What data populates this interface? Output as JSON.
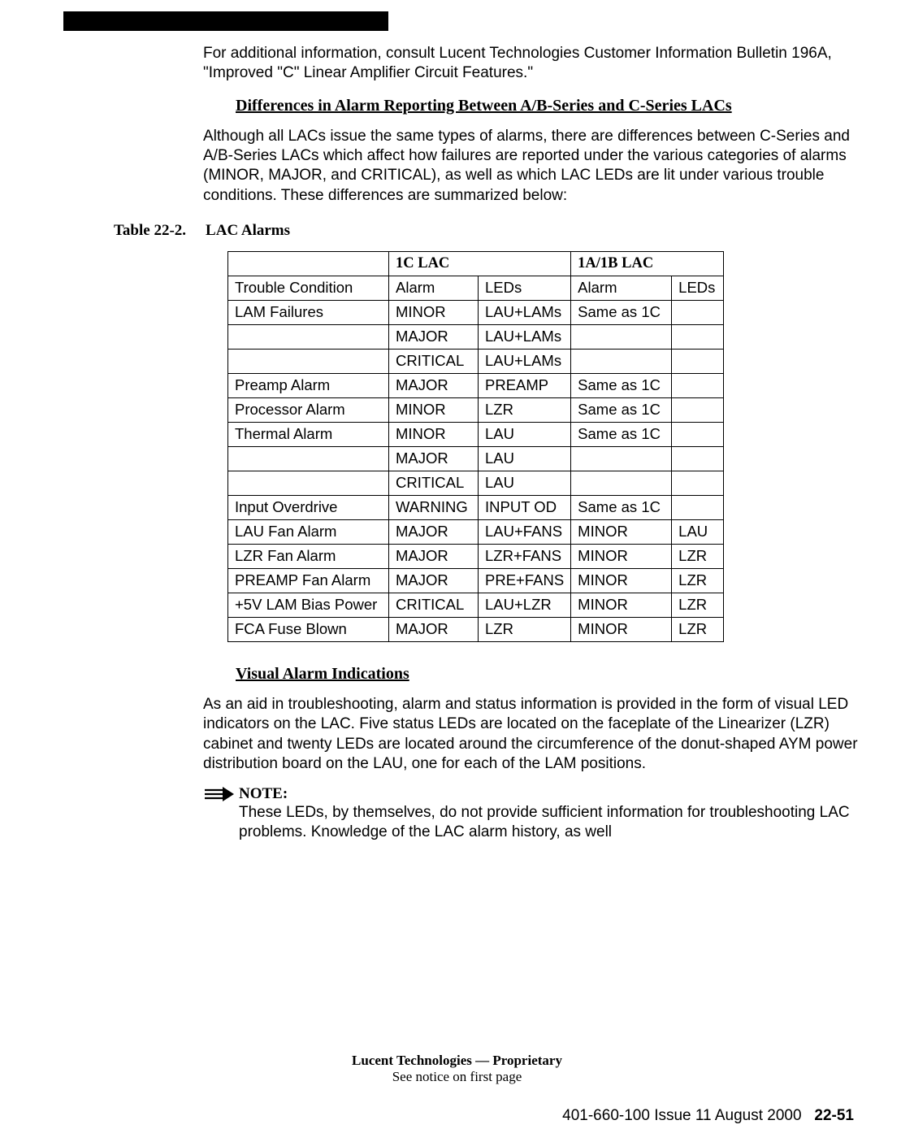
{
  "intro_para": "For additional information, consult  Lucent Technologies Customer Information Bulletin 196A, \"Improved \"C\" Linear Amplifier Circuit Features.\"",
  "heading_diff": "Differences in Alarm Reporting Between A/B-Series and C-Series LACs",
  "diff_para": "Although all LACs issue the same types of alarms, there are differences between C-Series and A/B-Series LACs which affect how failures are reported under the various categories of alarms (MINOR, MAJOR, and CRITICAL), as well as which LAC LEDs are lit under various trouble conditions. These differences are summarized below:",
  "table_caption_num": "Table 22-2.",
  "table_caption_title": "LAC Alarms",
  "table": {
    "head_1c": "1C LAC",
    "head_1a1b": "1A/1B LAC",
    "row_labels": {
      "trouble": "Trouble Condition",
      "alarm": "Alarm",
      "leds": "LEDs"
    },
    "rows": [
      {
        "tc": "LAM Failures",
        "a1": "MINOR",
        "l1": "LAU+LAMs",
        "a2": "Same as 1C",
        "l2": ""
      },
      {
        "tc": "",
        "a1": "MAJOR",
        "l1": "LAU+LAMs",
        "a2": "",
        "l2": ""
      },
      {
        "tc": "",
        "a1": "CRITICAL",
        "l1": "LAU+LAMs",
        "a2": "",
        "l2": ""
      },
      {
        "tc": "Preamp Alarm",
        "a1": "MAJOR",
        "l1": "PREAMP",
        "a2": "Same as 1C",
        "l2": ""
      },
      {
        "tc": "Processor Alarm",
        "a1": "MINOR",
        "l1": "LZR",
        "a2": "Same as 1C",
        "l2": ""
      },
      {
        "tc": "Thermal Alarm",
        "a1": "MINOR",
        "l1": "LAU",
        "a2": "Same as 1C",
        "l2": ""
      },
      {
        "tc": "",
        "a1": "MAJOR",
        "l1": "LAU",
        "a2": "",
        "l2": ""
      },
      {
        "tc": "",
        "a1": "CRITICAL",
        "l1": "LAU",
        "a2": "",
        "l2": ""
      },
      {
        "tc": "Input Overdrive",
        "a1": "WARNING",
        "l1": "INPUT OD",
        "a2": "Same as 1C",
        "l2": ""
      },
      {
        "tc": "LAU Fan Alarm",
        "a1": "MAJOR",
        "l1": "LAU+FANS",
        "a2": "MINOR",
        "l2": "LAU"
      },
      {
        "tc": "LZR Fan Alarm",
        "a1": "MAJOR",
        "l1": "LZR+FANS",
        "a2": "MINOR",
        "l2": "LZR"
      },
      {
        "tc": "PREAMP Fan Alarm",
        "a1": "MAJOR",
        "l1": "PRE+FANS",
        "a2": "MINOR",
        "l2": "LZR"
      },
      {
        "tc": "+5V LAM Bias Power",
        "a1": "CRITICAL",
        "l1": "LAU+LZR",
        "a2": "MINOR",
        "l2": "LZR"
      },
      {
        "tc": "FCA Fuse Blown",
        "a1": "MAJOR",
        "l1": "LZR",
        "a2": "MINOR",
        "l2": "LZR"
      }
    ]
  },
  "heading_visual": "Visual Alarm Indications",
  "visual_para": "As an aid in troubleshooting, alarm and status information is provided in the form of visual LED indicators on the LAC. Five status LEDs are located on the faceplate of the Linearizer (LZR) cabinet and twenty LEDs are located around the circumference of the donut-shaped AYM power distribution board on the LAU, one for each of the LAM positions.",
  "note_label": "NOTE:",
  "note_body": "These LEDs, by themselves, do not provide sufficient information for troubleshooting LAC problems. Knowledge of the LAC alarm history, as well",
  "footer": {
    "line1": "Lucent Technologies — Proprietary",
    "line2": "See notice on first page",
    "issue": "401-660-100 Issue 11    August 2000",
    "page": "22-51"
  }
}
